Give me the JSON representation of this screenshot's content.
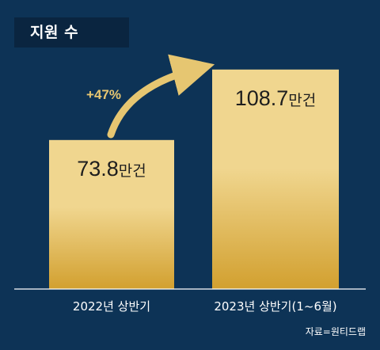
{
  "title": "지원 수",
  "source": "자료=원티드랩",
  "colors": {
    "background": "#0d3356",
    "bar_top": "#f0d68f",
    "bar_bottom": "#d2a02f",
    "arrow": "#e6c671",
    "text_light": "#ffffff",
    "bar_text": "#1e1e1e"
  },
  "annotation": {
    "label": "+47%"
  },
  "chart_data": {
    "type": "bar",
    "categories": [
      "2022년 상반기",
      "2023년 상반기(1~6월)"
    ],
    "values": [
      73.8,
      108.7
    ],
    "value_labels": [
      "73.8",
      "108.7"
    ],
    "unit": "만건",
    "title": "지원 수",
    "xlabel": "",
    "ylabel": "",
    "grid": false,
    "legend": "none"
  }
}
